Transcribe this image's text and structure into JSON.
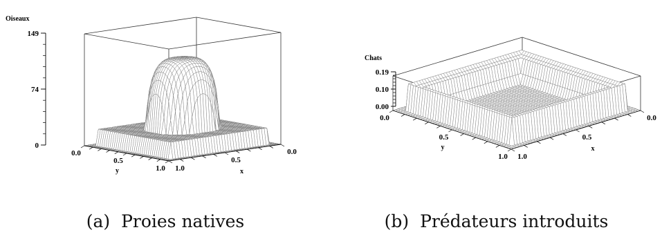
{
  "figures": [
    {
      "caption_marker": "(a)",
      "caption_text": "Proies natives",
      "chart_data": {
        "type": "surface",
        "zlabel": "Oiseaux",
        "xlabel": "x",
        "ylabel": "y",
        "z_ticks": [
          "149",
          "74",
          "0"
        ],
        "z_range": [
          0,
          149
        ],
        "x_ticks": [
          "0.0",
          "0.5",
          "1.0"
        ],
        "y_ticks": [
          "0.0",
          "0.5",
          "1.0"
        ],
        "x_range": [
          0,
          1
        ],
        "y_range": [
          0,
          1
        ],
        "grid_n": 42,
        "surface": {
          "shape": "central_plateau_peak",
          "peak_value": 149,
          "plateau_value": 28,
          "edge_value": 0
        }
      }
    },
    {
      "caption_marker": "(b)",
      "caption_text": "Prédateurs introduits",
      "chart_data": {
        "type": "surface",
        "zlabel": "Chats",
        "xlabel": "x",
        "ylabel": "y",
        "z_ticks": [
          "0.19",
          "0.10",
          "0.00"
        ],
        "z_range": [
          0,
          0.19
        ],
        "x_ticks": [
          "0.0",
          "0.5",
          "1.0"
        ],
        "y_ticks": [
          "0.0",
          "0.5",
          "1.0"
        ],
        "x_range": [
          0,
          1
        ],
        "y_range": [
          0,
          1
        ],
        "grid_n": 48,
        "surface": {
          "shape": "flat_with_raised_rim",
          "center_value": 0.0,
          "rim_value": 0.19,
          "edge_value": 0
        }
      }
    }
  ]
}
